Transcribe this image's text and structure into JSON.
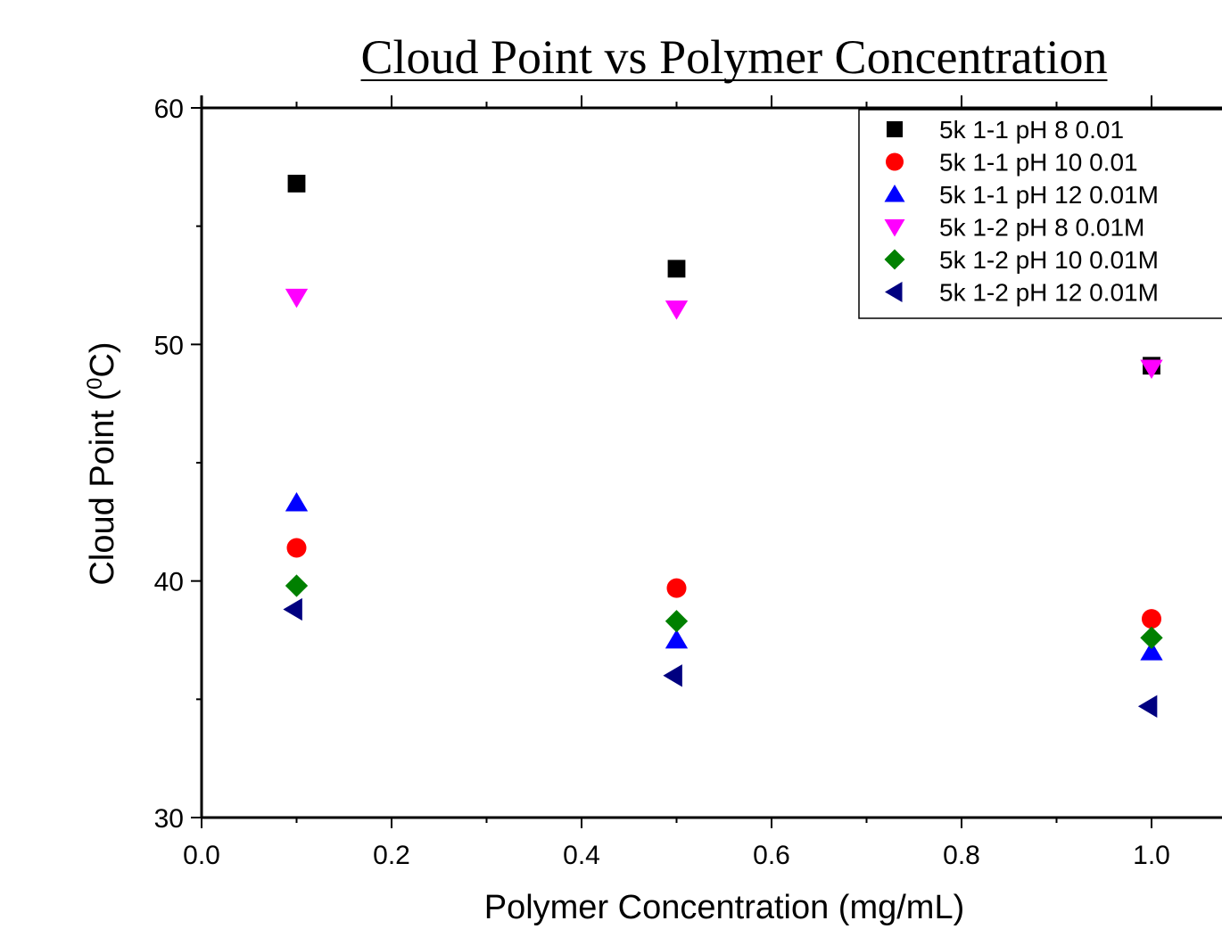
{
  "chart_data": {
    "type": "scatter",
    "title": "Cloud Point vs Polymer Concentration",
    "xlabel": "Polymer Concentration (mg/mL)",
    "ylabel_main": "Cloud Point (",
    "ylabel_sup": "0",
    "ylabel_tail": "C)",
    "xlim": [
      0.0,
      1.0
    ],
    "ylim": [
      30,
      60
    ],
    "x_ticks": [
      0.0,
      0.2,
      0.4,
      0.6,
      0.8,
      1.0
    ],
    "x_tick_labels": [
      "0.0",
      "0.2",
      "0.4",
      "0.6",
      "0.8",
      "1.0"
    ],
    "y_ticks": [
      30,
      40,
      50,
      60
    ],
    "y_tick_labels": [
      "30",
      "40",
      "50",
      "60"
    ],
    "grid": false,
    "legend_position": "top-right",
    "series": [
      {
        "name": "5k 1-1 pH 8 0.01",
        "marker": "square",
        "color": "#000000",
        "x": [
          0.1,
          0.5,
          1.0
        ],
        "y": [
          56.8,
          53.2,
          49.1
        ]
      },
      {
        "name": "5k 1-1 pH 10 0.01",
        "marker": "circle",
        "color": "#ff0000",
        "x": [
          0.1,
          0.5,
          1.0
        ],
        "y": [
          41.4,
          39.7,
          38.4
        ]
      },
      {
        "name": "5k 1-1 pH 12 0.01M",
        "marker": "triangle-up",
        "color": "#0000ff",
        "x": [
          0.1,
          0.5,
          1.0
        ],
        "y": [
          43.3,
          37.5,
          37.0
        ]
      },
      {
        "name": "5k 1-2 pH 8 0.01M",
        "marker": "triangle-down",
        "color": "#ff00ff",
        "x": [
          0.1,
          0.5,
          1.0
        ],
        "y": [
          52.0,
          51.5,
          49.0
        ]
      },
      {
        "name": "5k 1-2 pH 10 0.01M",
        "marker": "diamond",
        "color": "#008000",
        "x": [
          0.1,
          0.5,
          1.0
        ],
        "y": [
          39.8,
          38.3,
          37.6
        ]
      },
      {
        "name": "5k 1-2 pH 12 0.01M",
        "marker": "triangle-left",
        "color": "#000080",
        "x": [
          0.1,
          0.5,
          1.0
        ],
        "y": [
          38.8,
          36.0,
          34.7
        ]
      }
    ]
  }
}
